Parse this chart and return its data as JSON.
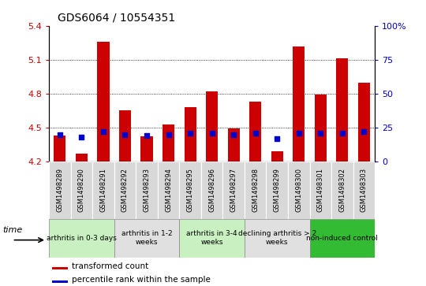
{
  "title": "GDS6064 / 10554351",
  "samples": [
    "GSM1498289",
    "GSM1498290",
    "GSM1498291",
    "GSM1498292",
    "GSM1498293",
    "GSM1498294",
    "GSM1498295",
    "GSM1498296",
    "GSM1498297",
    "GSM1498298",
    "GSM1498299",
    "GSM1498300",
    "GSM1498301",
    "GSM1498302",
    "GSM1498303"
  ],
  "red_values": [
    4.43,
    4.27,
    5.26,
    4.65,
    4.42,
    4.53,
    4.68,
    4.82,
    4.49,
    4.73,
    4.29,
    5.22,
    4.79,
    5.11,
    4.9
  ],
  "blue_pct": [
    20,
    18,
    22,
    20,
    19,
    20,
    21,
    21,
    20,
    21,
    17,
    21,
    21,
    21,
    22
  ],
  "ymin": 4.2,
  "ymax": 5.4,
  "yticks": [
    4.2,
    4.5,
    4.8,
    5.1,
    5.4
  ],
  "right_yticks": [
    0,
    25,
    50,
    75,
    100
  ],
  "groups": [
    {
      "label": "arthritis in 0-3 days",
      "start": 0,
      "end": 3,
      "color": "#c8f0c0"
    },
    {
      "label": "arthritis in 1-2\nweeks",
      "start": 3,
      "end": 6,
      "color": "#e0e0e0"
    },
    {
      "label": "arthritis in 3-4\nweeks",
      "start": 6,
      "end": 9,
      "color": "#c8f0c0"
    },
    {
      "label": "declining arthritis > 2\nweeks",
      "start": 9,
      "end": 12,
      "color": "#e0e0e0"
    },
    {
      "label": "non-induced control",
      "start": 12,
      "end": 15,
      "color": "#33bb33"
    }
  ],
  "bar_color": "#cc0000",
  "blue_color": "#0000cc",
  "baseline": 4.2,
  "bar_width": 0.55,
  "legend_red": "transformed count",
  "legend_blue": "percentile rank within the sample",
  "title_fontsize": 10,
  "axis_color_red": "#cc0000",
  "axis_color_blue": "#0000cc",
  "tick_fontsize": 8,
  "sample_box_color": "#d8d8d8"
}
